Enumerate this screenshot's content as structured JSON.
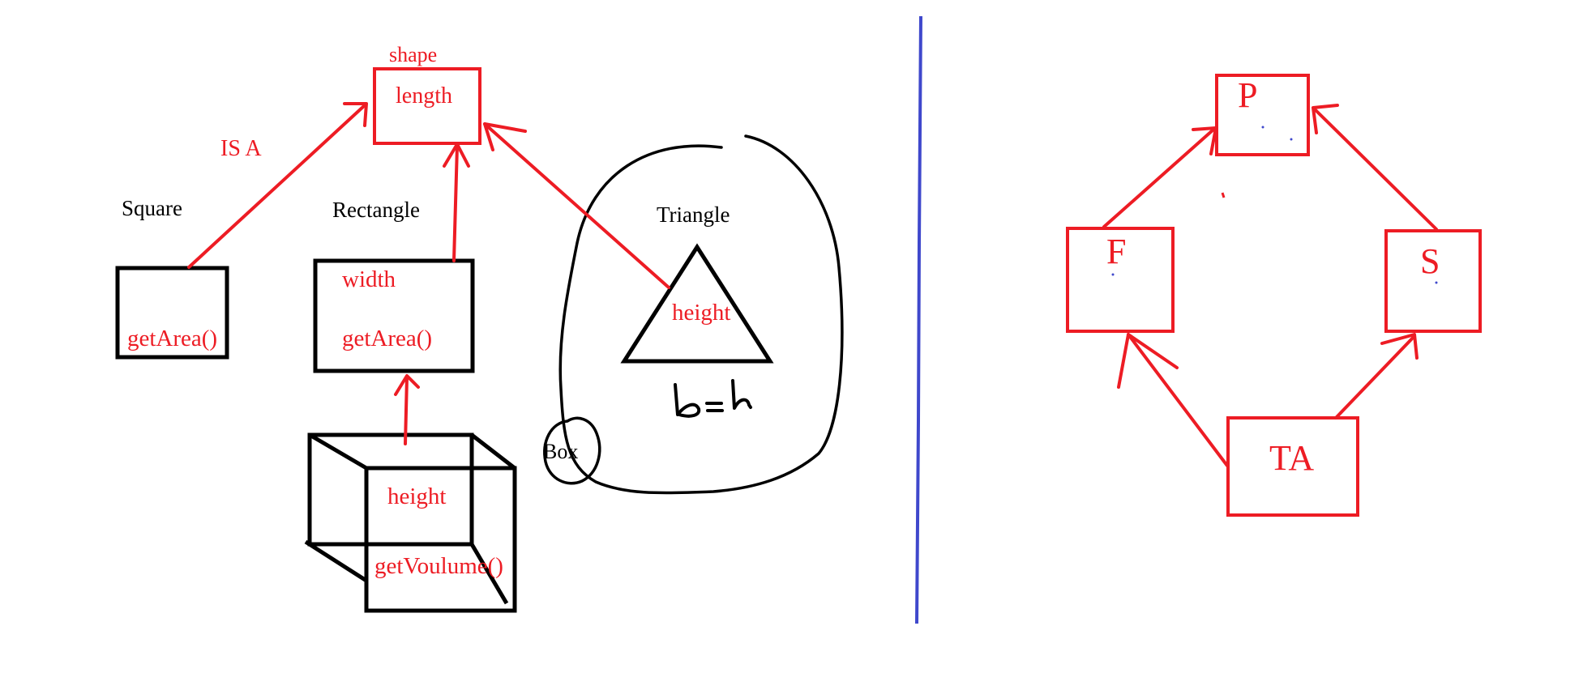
{
  "colors": {
    "red": "#ed1c24",
    "black": "#000000",
    "blue": "#3f48cc",
    "background": "#ffffff"
  },
  "left_diagram": {
    "shape": {
      "title": "shape",
      "field": "length"
    },
    "relation_label": "IS A",
    "square": {
      "title": "Square",
      "method": "getArea()"
    },
    "rectangle": {
      "title": "Rectangle",
      "field": "width",
      "method": "getArea()"
    },
    "triangle": {
      "title": "Triangle",
      "field": "height",
      "note": "b = h"
    },
    "box": {
      "title": "Box",
      "field": "height",
      "method": "getVoulume()"
    }
  },
  "right_diagram": {
    "p": "P",
    "f": "F",
    "s": "S",
    "ta": "TA"
  }
}
